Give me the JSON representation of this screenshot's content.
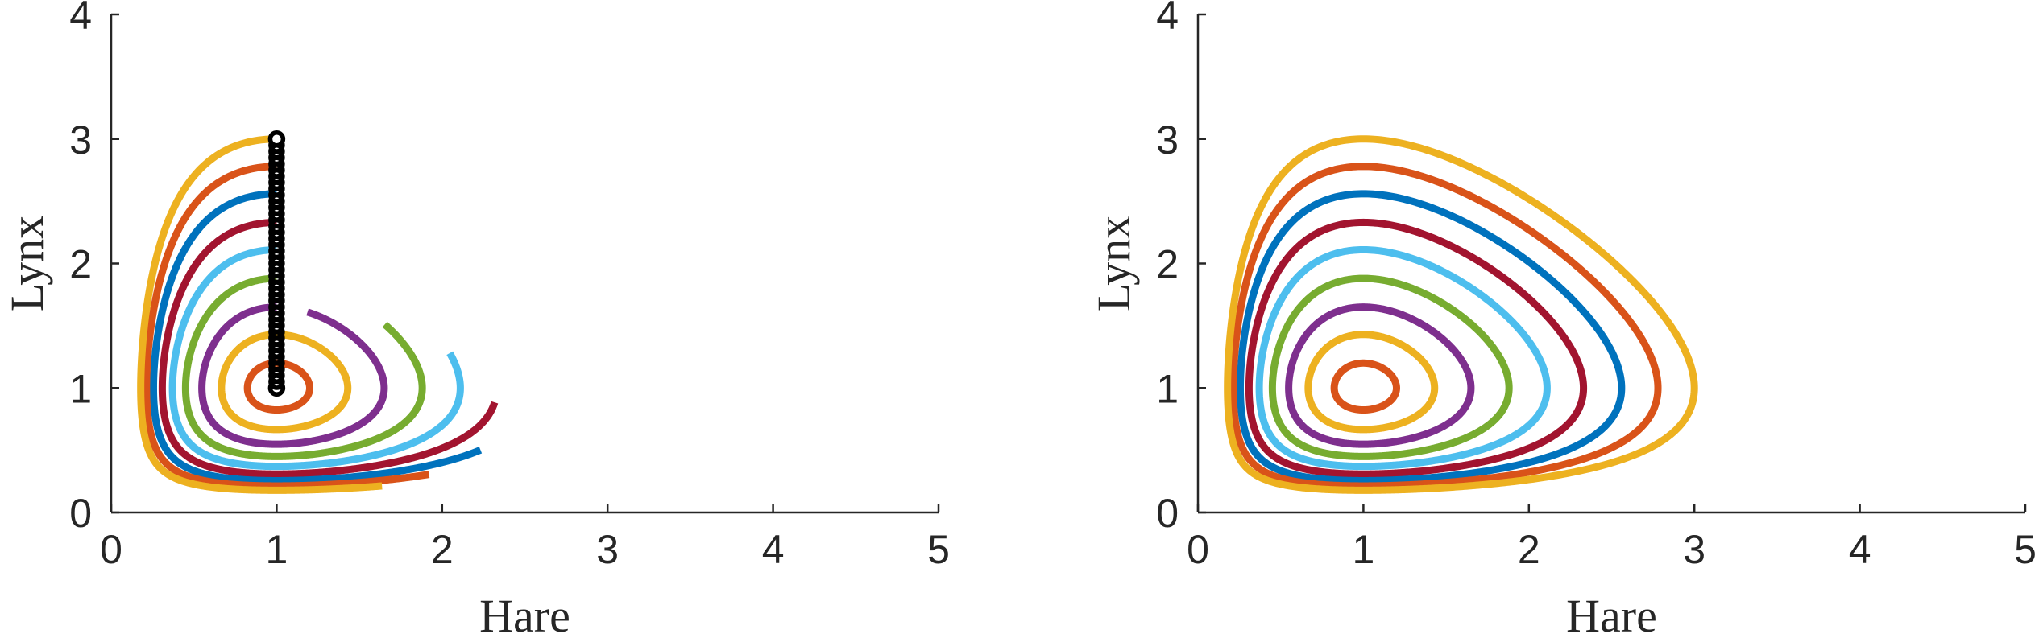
{
  "chart_data": [
    {
      "type": "line",
      "xlabel": "Hare",
      "ylabel": "Lynx",
      "xlim": [
        0,
        5
      ],
      "ylim": [
        0,
        4
      ],
      "xticks": [
        "0",
        "1",
        "2",
        "3",
        "4",
        "5"
      ],
      "yticks": [
        "0",
        "1",
        "2",
        "3",
        "4"
      ],
      "grid": false,
      "series_colors": [
        "#D95319",
        "#EDB120",
        "#7E2F8E",
        "#77AC30",
        "#4DBEEE",
        "#A2142F",
        "#0072BD",
        "#D95319",
        "#EDB120"
      ],
      "curves": [
        {
          "start": [
            1,
            1.2
          ],
          "end_angle_deg": 360
        },
        {
          "start": [
            1,
            1.43
          ],
          "end_angle_deg": 360
        },
        {
          "start": [
            1,
            1.65
          ],
          "end_angle_deg": 343
        },
        {
          "start": [
            1,
            1.88
          ],
          "end_angle_deg": 308
        },
        {
          "start": [
            1,
            2.11
          ],
          "end_angle_deg": 285
        },
        {
          "start": [
            1,
            2.33
          ],
          "end_angle_deg": 265
        },
        {
          "start": [
            1,
            2.56
          ],
          "end_angle_deg": 248
        },
        {
          "start": [
            1,
            2.78
          ],
          "end_angle_deg": 233
        },
        {
          "start": [
            1,
            3.0
          ],
          "end_angle_deg": 219
        }
      ],
      "initial_points": {
        "x": [
          1,
          1,
          1,
          1,
          1,
          1,
          1,
          1,
          1,
          1,
          1,
          1,
          1,
          1,
          1,
          1,
          1,
          1,
          1,
          1,
          1,
          1,
          1,
          1,
          1,
          1,
          1,
          1,
          1,
          1,
          1,
          1,
          1,
          1,
          1,
          1,
          1,
          1,
          1,
          1,
          1
        ],
        "y": [
          1.0,
          1.05,
          1.1,
          1.15,
          1.2,
          1.25,
          1.3,
          1.35,
          1.4,
          1.45,
          1.5,
          1.55,
          1.6,
          1.65,
          1.7,
          1.75,
          1.8,
          1.85,
          1.9,
          1.95,
          2.0,
          2.05,
          2.1,
          2.15,
          2.2,
          2.25,
          2.3,
          2.35,
          2.4,
          2.45,
          2.5,
          2.55,
          2.6,
          2.65,
          2.7,
          2.75,
          2.8,
          2.85,
          2.9,
          2.95,
          3.0
        ],
        "color": "#000000"
      }
    },
    {
      "type": "line",
      "xlabel": "Hare",
      "ylabel": "Lynx",
      "xlim": [
        0,
        5
      ],
      "ylim": [
        0,
        4
      ],
      "xticks": [
        "0",
        "1",
        "2",
        "3",
        "4",
        "5"
      ],
      "yticks": [
        "0",
        "1",
        "2",
        "3",
        "4"
      ],
      "grid": false,
      "series_colors": [
        "#D95319",
        "#EDB120",
        "#7E2F8E",
        "#77AC30",
        "#4DBEEE",
        "#A2142F",
        "#0072BD",
        "#D95319",
        "#EDB120"
      ],
      "curves": [
        {
          "start": [
            1,
            1.2
          ],
          "end_angle_deg": 360
        },
        {
          "start": [
            1,
            1.43
          ],
          "end_angle_deg": 360
        },
        {
          "start": [
            1,
            1.65
          ],
          "end_angle_deg": 360
        },
        {
          "start": [
            1,
            1.88
          ],
          "end_angle_deg": 360
        },
        {
          "start": [
            1,
            2.11
          ],
          "end_angle_deg": 360
        },
        {
          "start": [
            1,
            2.33
          ],
          "end_angle_deg": 360
        },
        {
          "start": [
            1,
            2.56
          ],
          "end_angle_deg": 360
        },
        {
          "start": [
            1,
            2.78
          ],
          "end_angle_deg": 360
        },
        {
          "start": [
            1,
            3.0
          ],
          "end_angle_deg": 360
        }
      ]
    }
  ]
}
